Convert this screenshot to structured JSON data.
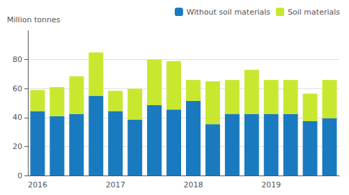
{
  "chart_data": {
    "type": "bar",
    "stacked": true,
    "categories": [
      "2016",
      null,
      null,
      null,
      "2017",
      null,
      null,
      null,
      "2018",
      null,
      null,
      null,
      "2019",
      null,
      null,
      null
    ],
    "series": [
      {
        "name": "Without soil materials",
        "color": "#1a7abf",
        "values": [
          44.5,
          41.0,
          42.5,
          55.0,
          44.5,
          38.5,
          48.5,
          45.5,
          51.5,
          35.5,
          42.5,
          42.5,
          42.5,
          42.5,
          37.5,
          39.5
        ]
      },
      {
        "name": "Soil materials",
        "color": "#c8e830",
        "values": [
          14.5,
          20.0,
          26.0,
          30.0,
          14.0,
          21.5,
          31.5,
          33.5,
          14.5,
          29.5,
          23.5,
          30.5,
          23.5,
          23.5,
          19.0,
          26.5
        ]
      }
    ],
    "ylabel": "Million tonnes",
    "ylim": [
      0,
      100
    ],
    "yticks": [
      0,
      20,
      40,
      60,
      80
    ],
    "grid": true,
    "legend": "upper right"
  }
}
